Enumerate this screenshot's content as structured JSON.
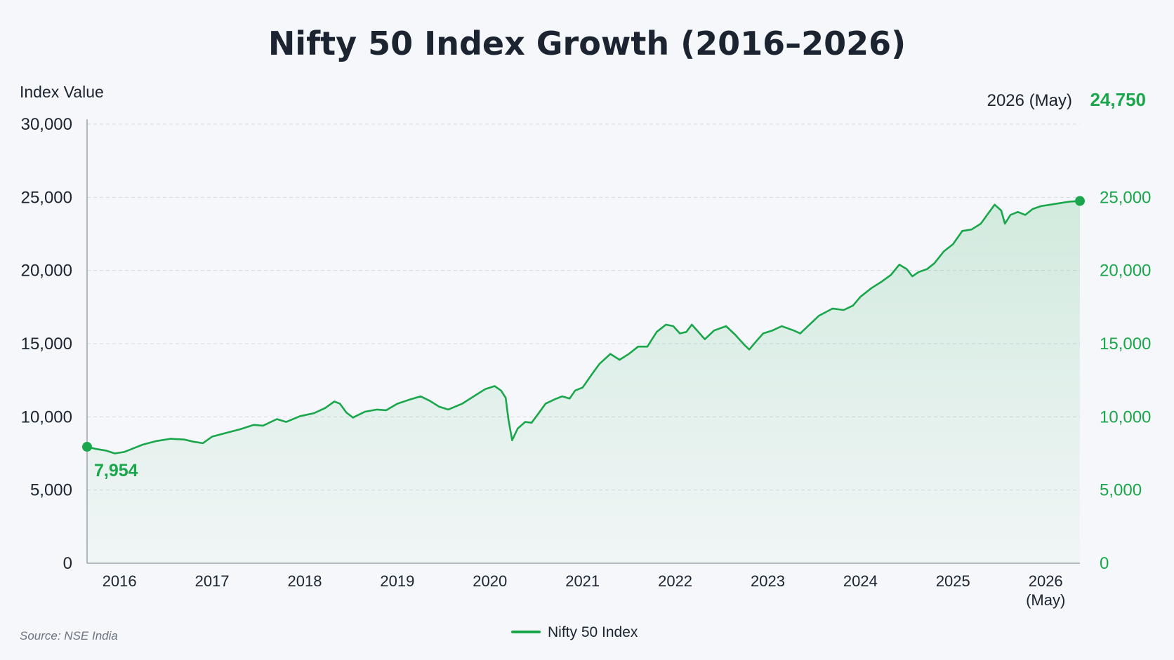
{
  "chart_data": {
    "type": "line",
    "title": "Nifty 50 Index Growth (2016–2026)",
    "ylabel": "Index Value",
    "ylim": [
      0,
      30000
    ],
    "yticks": [
      0,
      5000,
      10000,
      15000,
      20000,
      25000,
      30000
    ],
    "ytick_labels": [
      "0",
      "5,000",
      "10,000",
      "15,000",
      "20,000",
      "25,000",
      "30,000"
    ],
    "ytick_labels_right": [
      "0",
      "5,000",
      "10,000",
      "15,000",
      "20,000",
      "25,000"
    ],
    "xlim": [
      2015.65,
      2026.37
    ],
    "xticks": [
      2016,
      2017,
      2018,
      2019,
      2020,
      2021,
      2022,
      2023,
      2024,
      2025,
      2026
    ],
    "xtick_labels": [
      "2016",
      "2017",
      "2018",
      "2019",
      "2020",
      "2021",
      "2022",
      "2023",
      "2024",
      "2025",
      "2026"
    ],
    "xtick_sublabel": "(May)",
    "grid": true,
    "legend_position": "bottom-center",
    "series": [
      {
        "name": "Nifty 50 Index",
        "color": "#1aa64b",
        "points": [
          [
            2015.65,
            7954
          ],
          [
            2015.75,
            7800
          ],
          [
            2015.85,
            7700
          ],
          [
            2015.95,
            7500
          ],
          [
            2016.05,
            7600
          ],
          [
            2016.15,
            7850
          ],
          [
            2016.25,
            8100
          ],
          [
            2016.4,
            8350
          ],
          [
            2016.55,
            8500
          ],
          [
            2016.7,
            8450
          ],
          [
            2016.8,
            8300
          ],
          [
            2016.9,
            8200
          ],
          [
            2017.0,
            8650
          ],
          [
            2017.15,
            8900
          ],
          [
            2017.3,
            9150
          ],
          [
            2017.45,
            9450
          ],
          [
            2017.55,
            9400
          ],
          [
            2017.7,
            9850
          ],
          [
            2017.8,
            9650
          ],
          [
            2017.95,
            10050
          ],
          [
            2018.1,
            10250
          ],
          [
            2018.22,
            10600
          ],
          [
            2018.32,
            11050
          ],
          [
            2018.38,
            10900
          ],
          [
            2018.45,
            10300
          ],
          [
            2018.52,
            9950
          ],
          [
            2018.65,
            10350
          ],
          [
            2018.78,
            10500
          ],
          [
            2018.88,
            10450
          ],
          [
            2019.0,
            10900
          ],
          [
            2019.12,
            11150
          ],
          [
            2019.25,
            11400
          ],
          [
            2019.35,
            11100
          ],
          [
            2019.45,
            10700
          ],
          [
            2019.55,
            10500
          ],
          [
            2019.7,
            10900
          ],
          [
            2019.85,
            11500
          ],
          [
            2019.95,
            11900
          ],
          [
            2020.05,
            12100
          ],
          [
            2020.12,
            11800
          ],
          [
            2020.17,
            11300
          ],
          [
            2020.2,
            9800
          ],
          [
            2020.24,
            8400
          ],
          [
            2020.3,
            9200
          ],
          [
            2020.38,
            9650
          ],
          [
            2020.45,
            9600
          ],
          [
            2020.52,
            10200
          ],
          [
            2020.6,
            10900
          ],
          [
            2020.7,
            11200
          ],
          [
            2020.78,
            11400
          ],
          [
            2020.86,
            11250
          ],
          [
            2020.92,
            11800
          ],
          [
            2021.0,
            12000
          ],
          [
            2021.1,
            12900
          ],
          [
            2021.18,
            13600
          ],
          [
            2021.3,
            14300
          ],
          [
            2021.4,
            13900
          ],
          [
            2021.5,
            14300
          ],
          [
            2021.6,
            14800
          ],
          [
            2021.7,
            14800
          ],
          [
            2021.8,
            15800
          ],
          [
            2021.9,
            16300
          ],
          [
            2021.98,
            16200
          ],
          [
            2022.05,
            15700
          ],
          [
            2022.12,
            15800
          ],
          [
            2022.18,
            16300
          ],
          [
            2022.25,
            15800
          ],
          [
            2022.32,
            15300
          ],
          [
            2022.42,
            15900
          ],
          [
            2022.55,
            16200
          ],
          [
            2022.65,
            15600
          ],
          [
            2022.75,
            14900
          ],
          [
            2022.8,
            14600
          ],
          [
            2022.88,
            15200
          ],
          [
            2022.95,
            15700
          ],
          [
            2023.05,
            15900
          ],
          [
            2023.15,
            16200
          ],
          [
            2023.28,
            15900
          ],
          [
            2023.35,
            15700
          ],
          [
            2023.45,
            16300
          ],
          [
            2023.55,
            16900
          ],
          [
            2023.7,
            17400
          ],
          [
            2023.82,
            17300
          ],
          [
            2023.92,
            17600
          ],
          [
            2024.0,
            18200
          ],
          [
            2024.12,
            18800
          ],
          [
            2024.22,
            19200
          ],
          [
            2024.33,
            19700
          ],
          [
            2024.42,
            20400
          ],
          [
            2024.5,
            20100
          ],
          [
            2024.56,
            19600
          ],
          [
            2024.63,
            19900
          ],
          [
            2024.72,
            20100
          ],
          [
            2024.8,
            20500
          ],
          [
            2024.9,
            21300
          ],
          [
            2025.0,
            21800
          ],
          [
            2025.1,
            22700
          ],
          [
            2025.2,
            22800
          ],
          [
            2025.3,
            23200
          ],
          [
            2025.38,
            23900
          ],
          [
            2025.45,
            24500
          ],
          [
            2025.52,
            24100
          ],
          [
            2025.56,
            23200
          ],
          [
            2025.62,
            23800
          ],
          [
            2025.7,
            24000
          ],
          [
            2025.78,
            23800
          ],
          [
            2025.86,
            24200
          ],
          [
            2025.95,
            24400
          ],
          [
            2026.05,
            24500
          ],
          [
            2026.15,
            24600
          ],
          [
            2026.25,
            24700
          ],
          [
            2026.37,
            24750
          ]
        ]
      }
    ],
    "annotations": {
      "start_value": "7,954",
      "end_label": "2026 (May)",
      "end_value": "24,750"
    },
    "legend": [
      "Nifty 50 Index"
    ],
    "source": "Source: NSE India"
  }
}
